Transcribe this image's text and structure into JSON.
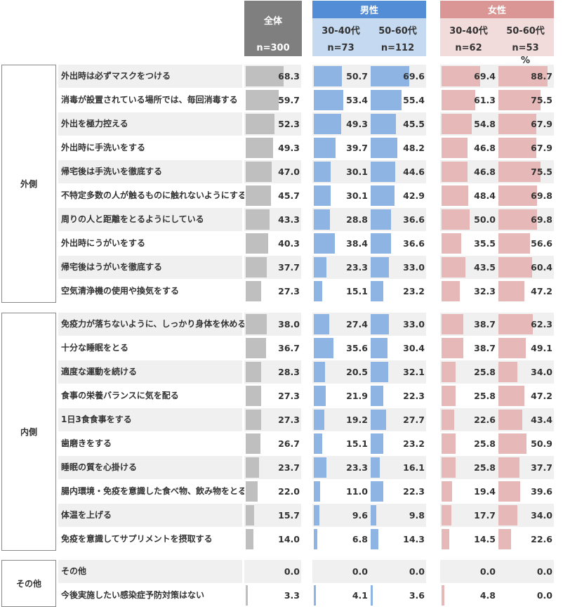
{
  "chart_data": {
    "type": "table",
    "unit": "%",
    "columns": [
      {
        "group": "全体",
        "label": "",
        "n": "n=300",
        "color": "#bfbfbf"
      },
      {
        "group": "男性",
        "label": "30-40代",
        "n": "n=73",
        "color": "#8eb4e3"
      },
      {
        "group": "男性",
        "label": "50-60代",
        "n": "n=112",
        "color": "#8eb4e3"
      },
      {
        "group": "女性",
        "label": "30-40代",
        "n": "n=62",
        "color": "#e6b9b8"
      },
      {
        "group": "女性",
        "label": "50-60代",
        "n": "n=53",
        "color": "#e6b9b8"
      }
    ],
    "headers": {
      "total": "全体",
      "male": "男性",
      "female": "女性"
    },
    "sections": [
      {
        "name": "外側",
        "rows": [
          {
            "label": "外出時は必ずマスクをつける",
            "values": [
              68.3,
              50.7,
              69.6,
              69.4,
              88.7
            ]
          },
          {
            "label": "消毒が設置されている場所では、毎回消毒する",
            "values": [
              59.7,
              53.4,
              55.4,
              61.3,
              75.5
            ]
          },
          {
            "label": "外出を極力控える",
            "values": [
              52.3,
              49.3,
              45.5,
              54.8,
              67.9
            ]
          },
          {
            "label": "外出時に手洗いをする",
            "values": [
              49.3,
              39.7,
              48.2,
              46.8,
              67.9
            ]
          },
          {
            "label": "帰宅後は手洗いを徹底する",
            "values": [
              47.0,
              30.1,
              44.6,
              46.8,
              75.5
            ]
          },
          {
            "label": "不特定多数の人が触るものに触れないようにする",
            "values": [
              45.7,
              30.1,
              42.9,
              48.4,
              69.8
            ]
          },
          {
            "label": "周りの人と距離をとるようにしている",
            "values": [
              43.3,
              28.8,
              36.6,
              50.0,
              69.8
            ]
          },
          {
            "label": "外出時にうがいをする",
            "values": [
              40.3,
              38.4,
              36.6,
              35.5,
              56.6
            ]
          },
          {
            "label": "帰宅後はうがいを徹底する",
            "values": [
              37.7,
              23.3,
              33.0,
              43.5,
              60.4
            ]
          },
          {
            "label": "空気清浄機の使用や換気をする",
            "values": [
              27.3,
              15.1,
              23.2,
              32.3,
              47.2
            ]
          }
        ]
      },
      {
        "name": "内側",
        "rows": [
          {
            "label": "免疫力が落ちないように、しっかり身体を休める",
            "values": [
              38.0,
              27.4,
              33.0,
              38.7,
              62.3
            ]
          },
          {
            "label": "十分な睡眠をとる",
            "values": [
              36.7,
              35.6,
              30.4,
              38.7,
              49.1
            ]
          },
          {
            "label": "適度な運動を続ける",
            "values": [
              28.3,
              20.5,
              32.1,
              25.8,
              34.0
            ]
          },
          {
            "label": "食事の栄養バランスに気を配る",
            "values": [
              27.3,
              21.9,
              22.3,
              25.8,
              47.2
            ]
          },
          {
            "label": "1日3食食事をする",
            "values": [
              27.3,
              19.2,
              27.7,
              22.6,
              43.4
            ]
          },
          {
            "label": "歯磨きをする",
            "values": [
              26.7,
              15.1,
              23.2,
              25.8,
              50.9
            ]
          },
          {
            "label": "睡眠の質を心掛ける",
            "values": [
              23.7,
              23.3,
              16.1,
              25.8,
              37.7
            ]
          },
          {
            "label": "腸内環境・免疫を意識した食べ物、飲み物をとる",
            "values": [
              22.0,
              11.0,
              22.3,
              19.4,
              39.6
            ]
          },
          {
            "label": "体温を上げる",
            "values": [
              15.7,
              9.6,
              9.8,
              17.7,
              34.0
            ]
          },
          {
            "label": "免疫を意識してサプリメントを摂取する",
            "values": [
              14.0,
              6.8,
              14.3,
              14.5,
              22.6
            ]
          }
        ]
      },
      {
        "name": "その他",
        "rows": [
          {
            "label": "その他",
            "values": [
              0.0,
              0.0,
              0.0,
              0.0,
              0.0
            ]
          },
          {
            "label": "今後実施したい感染症予防対策はない",
            "values": [
              3.3,
              4.1,
              3.6,
              4.8,
              0.0
            ]
          }
        ]
      }
    ]
  }
}
